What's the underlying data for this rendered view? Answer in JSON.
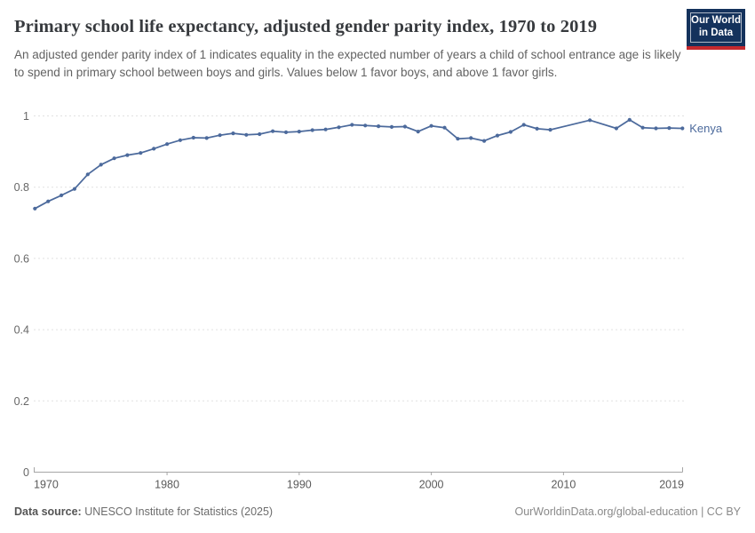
{
  "header": {
    "title": "Primary school life expectancy, adjusted gender parity index, 1970 to 2019",
    "subtitle": "An adjusted gender parity index of 1 indicates equality in the expected number of years a child of school entrance age is likely to spend in primary school between boys and girls. Values below 1 favor boys, and above 1 favor girls.",
    "logo": {
      "line1": "Our World",
      "line2": "in Data"
    }
  },
  "chart_data": {
    "type": "line",
    "title": "Primary school life expectancy, adjusted gender parity index, 1970 to 2019",
    "x": [
      1970,
      1971,
      1972,
      1973,
      1974,
      1975,
      1976,
      1977,
      1978,
      1979,
      1980,
      1981,
      1982,
      1983,
      1984,
      1985,
      1986,
      1987,
      1988,
      1989,
      1990,
      1991,
      1992,
      1993,
      1994,
      1995,
      1996,
      1997,
      1998,
      1999,
      2000,
      2001,
      2002,
      2003,
      2004,
      2005,
      2006,
      2007,
      2008,
      2009,
      2010,
      2011,
      2012,
      2013,
      2014,
      2015,
      2016,
      2017,
      2018,
      2019
    ],
    "series": [
      {
        "name": "Kenya",
        "color": "#4C6A9C",
        "values": [
          0.74,
          0.76,
          0.777,
          0.795,
          0.836,
          0.863,
          0.881,
          0.89,
          0.896,
          0.908,
          0.921,
          0.932,
          0.939,
          0.938,
          0.946,
          0.951,
          0.947,
          0.949,
          0.957,
          0.954,
          0.956,
          0.96,
          0.962,
          0.968,
          0.975,
          0.973,
          0.971,
          0.969,
          0.97,
          0.956,
          0.972,
          0.967,
          0.936,
          0.938,
          0.93,
          0.945,
          0.955,
          0.975,
          0.964,
          0.961,
          null,
          null,
          0.988,
          null,
          0.965,
          0.989,
          0.967,
          0.965,
          0.966,
          0.965
        ]
      }
    ],
    "ylim": [
      0,
      1
    ],
    "yticks": [
      0,
      0.2,
      0.4,
      0.6,
      0.8,
      1
    ],
    "xticks": [
      1970,
      1980,
      1990,
      2000,
      2010,
      2019
    ],
    "grid": "horizontal-dashed",
    "legend_position": "line-end",
    "xlabel": "",
    "ylabel": ""
  },
  "footer": {
    "source_label": "Data source:",
    "source_text": " UNESCO Institute for Statistics (2025)",
    "attribution": "OurWorldinData.org/global-education | CC BY"
  },
  "colors": {
    "accent_line": "#4C6A9C",
    "grid": "#e1e1e1",
    "axis": "#a5a5a5",
    "logo_bg": "#14325c",
    "logo_red": "#c5292e"
  }
}
